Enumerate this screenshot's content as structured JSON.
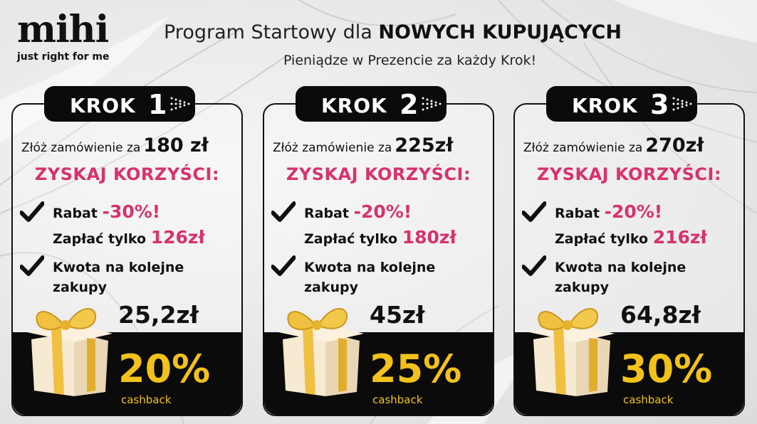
{
  "brand": {
    "name": "mihi",
    "tagline": "just right for me"
  },
  "header": {
    "title_prefix": "Program Startowy dla ",
    "title_bold": "NOWYCH KUPUJĄCYCH",
    "subtitle": "Pieniądze w Prezencie za każdy Krok!"
  },
  "colors": {
    "accent_pink": "#d6336c",
    "accent_gold": "#f2c21b",
    "dark": "#0b0b0b"
  },
  "steps": [
    {
      "krok_label": "KROK",
      "number": "1",
      "order_label": "Złóż zamówienie za",
      "order_amount": "180 zł",
      "benefits_heading": "ZYSKAJ KORZYŚCI:",
      "discount_label": "Rabat",
      "discount_value": "-30%!",
      "pay_label": "Zapłać tylko",
      "pay_value": "126zł",
      "credit_line1": "Kwota na kolejne",
      "credit_line2": "zakupy",
      "cashback_amount": "25,2zł",
      "cashback_percent": "20%",
      "cashback_label": "cashback"
    },
    {
      "krok_label": "KROK",
      "number": "2",
      "order_label": "Złóż zamówienie za",
      "order_amount": "225zł",
      "benefits_heading": "ZYSKAJ KORZYŚCI:",
      "discount_label": "Rabat",
      "discount_value": "-20%!",
      "pay_label": "Zapłać tylko",
      "pay_value": "180zł",
      "credit_line1": "Kwota na kolejne",
      "credit_line2": "zakupy",
      "cashback_amount": "45zł",
      "cashback_percent": "25%",
      "cashback_label": "cashback"
    },
    {
      "krok_label": "KROK",
      "number": "3",
      "order_label": "Złóż zamówienie za",
      "order_amount": "270zł",
      "benefits_heading": "ZYSKAJ KORZYŚCI:",
      "discount_label": "Rabat",
      "discount_value": "-20%!",
      "pay_label": "Zapłać tylko",
      "pay_value": "216zł",
      "credit_line1": "Kwota na kolejne",
      "credit_line2": "zakupy",
      "cashback_amount": "64,8zł",
      "cashback_percent": "30%",
      "cashback_label": "cashback"
    }
  ]
}
